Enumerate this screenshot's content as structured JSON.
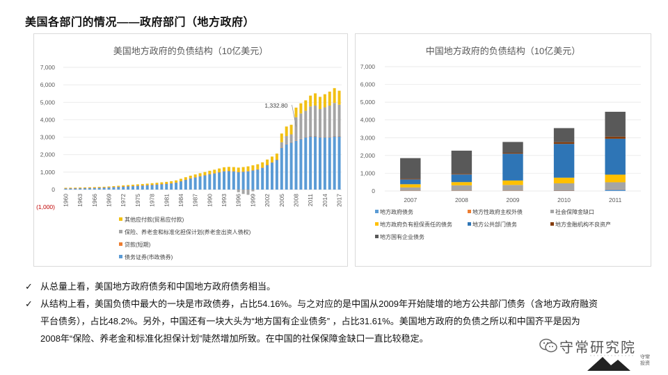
{
  "title": "美国各部门的情况——政府部门（地方政府）",
  "us_chart": {
    "title": "美国地方政府的负债结构（10亿美元）",
    "y_ticks": [
      "7,000",
      "6,000",
      "5,000",
      "4,000",
      "3,000",
      "2,000",
      "1,000",
      "0",
      "(1,000)"
    ],
    "x_ticks": [
      "1960",
      "1963",
      "1966",
      "1969",
      "1972",
      "1975",
      "1978",
      "1981",
      "1984",
      "1987",
      "1990",
      "1993",
      "1996",
      "1999",
      "2002",
      "2005",
      "2008",
      "2011",
      "2014",
      "2017"
    ],
    "annotation": "1,332.80",
    "legend": [
      {
        "label": "其他应付款(贸易应付款)",
        "color": "#f2c014"
      },
      {
        "label": "保险、养老金和标准化担保计划(养老金出资人债权)",
        "color": "#a5a5a5"
      },
      {
        "label": "贷款(短期)",
        "color": "#ed7d31"
      },
      {
        "label": "债务证券(市政债券)",
        "color": "#5b9bd5"
      }
    ]
  },
  "cn_chart": {
    "title": "中国地方政府的负债结构（10亿美元）",
    "y_ticks": [
      "7,000",
      "6,000",
      "5,000",
      "4,000",
      "3,000",
      "2,000",
      "1,000",
      "0"
    ],
    "legend": [
      {
        "label": "地方政府债务",
        "color": "#5b9bd5"
      },
      {
        "label": "地方性政府主权外债",
        "color": "#ed7d31"
      },
      {
        "label": "社会保障金缺口",
        "color": "#a5a5a5"
      },
      {
        "label": "地方政府负有担保责任的债务",
        "color": "#ffc000"
      },
      {
        "label": "地方公共部门债务",
        "color": "#2e75b6"
      },
      {
        "label": "地方金融机构不良资产",
        "color": "#843c0c"
      },
      {
        "label": "地方国有企业债务",
        "color": "#595959"
      }
    ]
  },
  "chart_data": [
    {
      "type": "bar",
      "stacked": true,
      "title": "美国地方政府的负债结构（10亿美元）",
      "ylim": [
        -1000,
        7000
      ],
      "x": [
        1960,
        1961,
        1962,
        1963,
        1964,
        1965,
        1966,
        1967,
        1968,
        1969,
        1970,
        1971,
        1972,
        1973,
        1974,
        1975,
        1976,
        1977,
        1978,
        1979,
        1980,
        1981,
        1982,
        1983,
        1984,
        1985,
        1986,
        1987,
        1988,
        1989,
        1990,
        1991,
        1992,
        1993,
        1994,
        1995,
        1996,
        1997,
        1998,
        1999,
        2000,
        2001,
        2002,
        2003,
        2004,
        2005,
        2006,
        2007,
        2008,
        2009,
        2010,
        2011,
        2012,
        2013,
        2014,
        2015,
        2016,
        2017
      ],
      "series": [
        {
          "name": "债务证券(市政债券)",
          "values": [
            70,
            75,
            80,
            85,
            90,
            95,
            100,
            110,
            120,
            130,
            145,
            160,
            175,
            190,
            205,
            220,
            235,
            250,
            270,
            290,
            310,
            330,
            360,
            400,
            480,
            560,
            640,
            700,
            760,
            820,
            880,
            930,
            990,
            1050,
            1060,
            1040,
            1000,
            1020,
            1050,
            1100,
            1150,
            1250,
            1400,
            1550,
            1700,
            2400,
            2600,
            2700,
            2800,
            2900,
            3000,
            3050,
            3050,
            3000,
            3000,
            3000,
            3050,
            3050
          ]
        },
        {
          "name": "贷款(短期)",
          "values": [
            2,
            2,
            2,
            2,
            2,
            2,
            3,
            3,
            3,
            3,
            4,
            4,
            4,
            5,
            5,
            5,
            5,
            6,
            6,
            6,
            7,
            7,
            7,
            8,
            8,
            8,
            8,
            8,
            9,
            9,
            9,
            9,
            9,
            9,
            10,
            10,
            10,
            10,
            10,
            10,
            10,
            11,
            11,
            11,
            11,
            11,
            12,
            12,
            12,
            12,
            12,
            12,
            12,
            12,
            12,
            12,
            12,
            12
          ]
        },
        {
          "name": "保险、养老金和标准化担保计划(养老金出资人债权)",
          "values": [
            0,
            0,
            0,
            0,
            0,
            0,
            0,
            0,
            0,
            0,
            0,
            0,
            0,
            0,
            0,
            0,
            0,
            0,
            0,
            0,
            0,
            0,
            0,
            0,
            0,
            0,
            0,
            0,
            0,
            0,
            0,
            0,
            0,
            0,
            0,
            0,
            -150,
            -250,
            -300,
            -100,
            0,
            0,
            0,
            0,
            0,
            300,
            450,
            450,
            1332.8,
            1450,
            1500,
            1700,
            1750,
            1600,
            1700,
            1800,
            1900,
            1800
          ]
        },
        {
          "name": "其他应付款(贸易应付款)",
          "values": [
            30,
            30,
            30,
            35,
            35,
            35,
            40,
            40,
            40,
            45,
            50,
            55,
            60,
            65,
            70,
            75,
            80,
            85,
            90,
            95,
            100,
            105,
            110,
            120,
            130,
            140,
            150,
            160,
            170,
            180,
            190,
            200,
            210,
            220,
            230,
            240,
            250,
            260,
            270,
            280,
            290,
            300,
            310,
            330,
            350,
            500,
            550,
            550,
            550,
            580,
            600,
            620,
            700,
            700,
            750,
            800,
            850,
            800
          ]
        }
      ],
      "legend": [
        "其他应付款(贸易应付款)",
        "保险、养老金和标准化担保计划(养老金出资人债权)",
        "贷款(短期)",
        "债务证券(市政债券)"
      ],
      "annotations": [
        {
          "x": 2008,
          "label": "1,332.80"
        }
      ]
    },
    {
      "type": "bar",
      "stacked": true,
      "title": "中国地方政府的负债结构（10亿美元）",
      "categories": [
        "2007",
        "2008",
        "2009",
        "2010",
        "2011"
      ],
      "ylim": [
        0,
        7000
      ],
      "series": [
        {
          "name": "地方政府债务",
          "values": [
            20,
            20,
            20,
            30,
            80
          ]
        },
        {
          "name": "地方性政府主权外债",
          "values": [
            10,
            10,
            10,
            10,
            10
          ]
        },
        {
          "name": "社会保障金缺口",
          "values": [
            170,
            290,
            310,
            390,
            400
          ]
        },
        {
          "name": "地方政府负有担保责任的债务",
          "values": [
            180,
            180,
            250,
            320,
            430
          ]
        },
        {
          "name": "地方公共部门债务",
          "values": [
            270,
            430,
            1510,
            1900,
            2020
          ]
        },
        {
          "name": "地方金融机构不良资产",
          "values": [
            40,
            40,
            50,
            100,
            120
          ]
        },
        {
          "name": "地方国有企业债务",
          "values": [
            1160,
            1300,
            610,
            790,
            1400
          ]
        }
      ]
    }
  ],
  "bullets": [
    {
      "lines": [
        "从总量上看，美国地方政府债务和中国地方政府债务相当。"
      ]
    },
    {
      "lines": [
        "从结构上看，美国负债中最大的一块是市政债券，占比54.16%。与之对应的是中国从2009年开始陡增的地方公共部门债务（含地方政府融资",
        "平台债务），占比48.2%。另外，中国还有一块大头为“地方国有企业债务” ，占比31.61%。美国地方政府的负债之所以和中国齐平是因为",
        "2008年“保险、养老金和标准化担保计划”陡然增加所致。在中国的社保保障金缺口一直比较稳定。"
      ]
    }
  ],
  "check_mark": "✓",
  "watermark": {
    "text": "守常研究院",
    "seal": "守常投资"
  },
  "colors": {
    "us_sec": "#5b9bd5",
    "us_loan": "#ed7d31",
    "us_ins": "#a5a5a5",
    "us_other": "#f2c014"
  }
}
